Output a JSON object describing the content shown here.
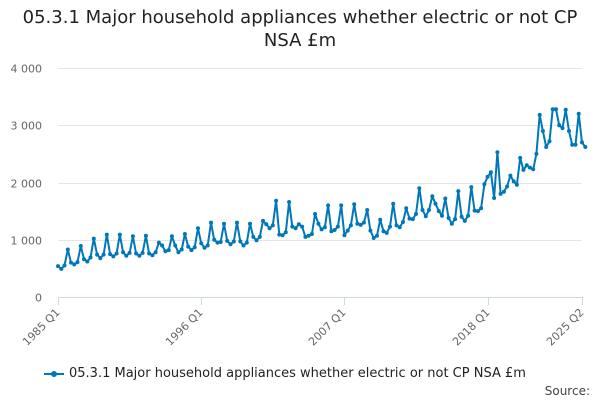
{
  "title": "05.3.1 Major household appliances whether electric or not CP NSA £m",
  "source_label": "Source:",
  "colors": {
    "series": "#0077b7",
    "grid": "#e6e6e6",
    "axis_text": "#666666",
    "axis_line": "#ccd6eb"
  },
  "chart_data": {
    "type": "line",
    "title": "05.3.1 Major household appliances whether electric or not CP NSA £m",
    "xlabel": "",
    "ylabel": "",
    "ylim": [
      0,
      4000
    ],
    "yticks": [
      0,
      1000,
      2000,
      3000,
      4000
    ],
    "ytick_labels": [
      "0",
      "1 000",
      "2 000",
      "3 000",
      "4 000"
    ],
    "x_start": "1985 Q1",
    "x_end": "2025 Q2",
    "xtick_labels": [
      "1985 Q1",
      "1996 Q1",
      "2007 Q1",
      "2018 Q1",
      "2025 Q2"
    ],
    "grid": true,
    "legend_position": "bottom",
    "series": [
      {
        "name": "05.3.1 Major household appliances whether electric or not CP NSA £m",
        "values": [
          540,
          490,
          550,
          830,
          600,
          570,
          610,
          890,
          660,
          620,
          690,
          1020,
          740,
          680,
          740,
          1090,
          750,
          710,
          760,
          1090,
          780,
          720,
          770,
          1060,
          760,
          720,
          770,
          1070,
          760,
          730,
          780,
          950,
          900,
          800,
          820,
          1060,
          900,
          780,
          830,
          1100,
          880,
          820,
          870,
          1200,
          940,
          860,
          900,
          1300,
          1000,
          950,
          960,
          1280,
          980,
          920,
          970,
          1300,
          970,
          900,
          950,
          1280,
          1050,
          990,
          1050,
          1330,
          1270,
          1200,
          1250,
          1680,
          1090,
          1080,
          1130,
          1660,
          1230,
          1200,
          1270,
          1230,
          1050,
          1070,
          1100,
          1450,
          1280,
          1180,
          1220,
          1600,
          1150,
          1170,
          1230,
          1600,
          1080,
          1160,
          1250,
          1620,
          1280,
          1260,
          1300,
          1520,
          1160,
          1030,
          1070,
          1350,
          1150,
          1120,
          1230,
          1630,
          1250,
          1220,
          1310,
          1550,
          1370,
          1360,
          1450,
          1900,
          1520,
          1410,
          1520,
          1760,
          1630,
          1500,
          1420,
          1720,
          1380,
          1280,
          1360,
          1850,
          1400,
          1330,
          1420,
          1920,
          1510,
          1500,
          1550,
          1970,
          2100,
          2180,
          1730,
          2530,
          1800,
          1840,
          1930,
          2120,
          2020,
          1960,
          2430,
          2220,
          2300,
          2260,
          2230,
          2500,
          3180,
          2900,
          2620,
          2720,
          3280,
          3280,
          3000,
          2950,
          3270,
          2900,
          2660,
          2660,
          3200,
          2700,
          2620
        ]
      }
    ]
  }
}
